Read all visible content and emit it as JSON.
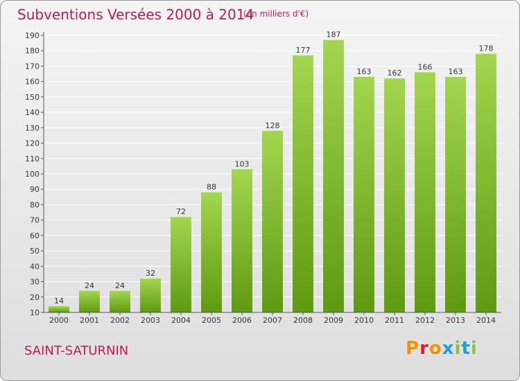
{
  "header": {
    "title": "Subventions Versées 2000 à 2014",
    "unit": "(en milliers d'€)"
  },
  "footer": {
    "commune": "SAINT-SATURNIN",
    "logo": "Proxiti"
  },
  "colors": {
    "title": "#c2185b",
    "bar_light": "#a2d64e",
    "bar_dark": "#5e9a10",
    "logo_letters": [
      "#f39200",
      "#e31e24",
      "#f39200",
      "#1ea0dc",
      "#8cc63f",
      "#1ea0dc",
      "#8cc63f"
    ]
  },
  "chart_data": {
    "type": "bar",
    "title": "Subventions Versées 2000 à 2014",
    "subtitle": "(en milliers d'€)",
    "xlabel": "",
    "ylabel": "",
    "categories": [
      "2000",
      "2001",
      "2002",
      "2003",
      "2004",
      "2005",
      "2006",
      "2007",
      "2008",
      "2009",
      "2010",
      "2011",
      "2012",
      "2013",
      "2014"
    ],
    "values": [
      14,
      24,
      24,
      32,
      72,
      88,
      103,
      128,
      177,
      187,
      163,
      162,
      166,
      163,
      178
    ],
    "ylim": [
      10,
      190
    ],
    "yticks": [
      10,
      20,
      30,
      40,
      50,
      60,
      70,
      80,
      90,
      100,
      110,
      120,
      130,
      140,
      150,
      160,
      170,
      180,
      190
    ],
    "grid": true,
    "legend": "none"
  }
}
